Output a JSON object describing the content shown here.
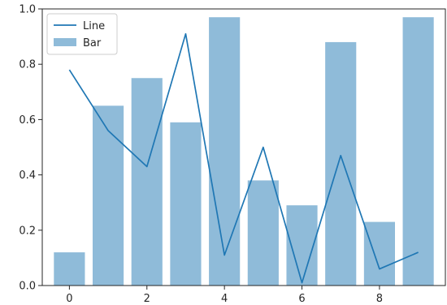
{
  "chart_data": {
    "type": "bar",
    "x": [
      0,
      1,
      2,
      3,
      4,
      5,
      6,
      7,
      8,
      9
    ],
    "series": [
      {
        "name": "Line",
        "type": "line",
        "color": "#1f77b4",
        "values": [
          0.78,
          0.56,
          0.43,
          0.91,
          0.11,
          0.5,
          0.01,
          0.47,
          0.06,
          0.12
        ]
      },
      {
        "name": "Bar",
        "type": "bar",
        "color": "#1f77b4",
        "opacity": 0.5,
        "values": [
          0.12,
          0.65,
          0.75,
          0.59,
          0.97,
          0.38,
          0.29,
          0.88,
          0.23,
          0.97
        ]
      }
    ],
    "xlim": [
      -0.7,
      9.7
    ],
    "ylim": [
      0.0,
      1.0
    ],
    "xticks": [
      0,
      2,
      4,
      6,
      8
    ],
    "xtick_labels": [
      "0",
      "2",
      "4",
      "6",
      "8"
    ],
    "yticks": [
      0.0,
      0.2,
      0.4,
      0.6,
      0.8,
      1.0
    ],
    "ytick_labels": [
      "0.0",
      "0.2",
      "0.4",
      "0.6",
      "0.8",
      "1.0"
    ],
    "title": "",
    "xlabel": "",
    "ylabel": "",
    "grid": false,
    "legend": {
      "position": "top-left",
      "entries": [
        {
          "label": "Line",
          "marker": "line"
        },
        {
          "label": "Bar",
          "marker": "patch"
        }
      ]
    }
  }
}
